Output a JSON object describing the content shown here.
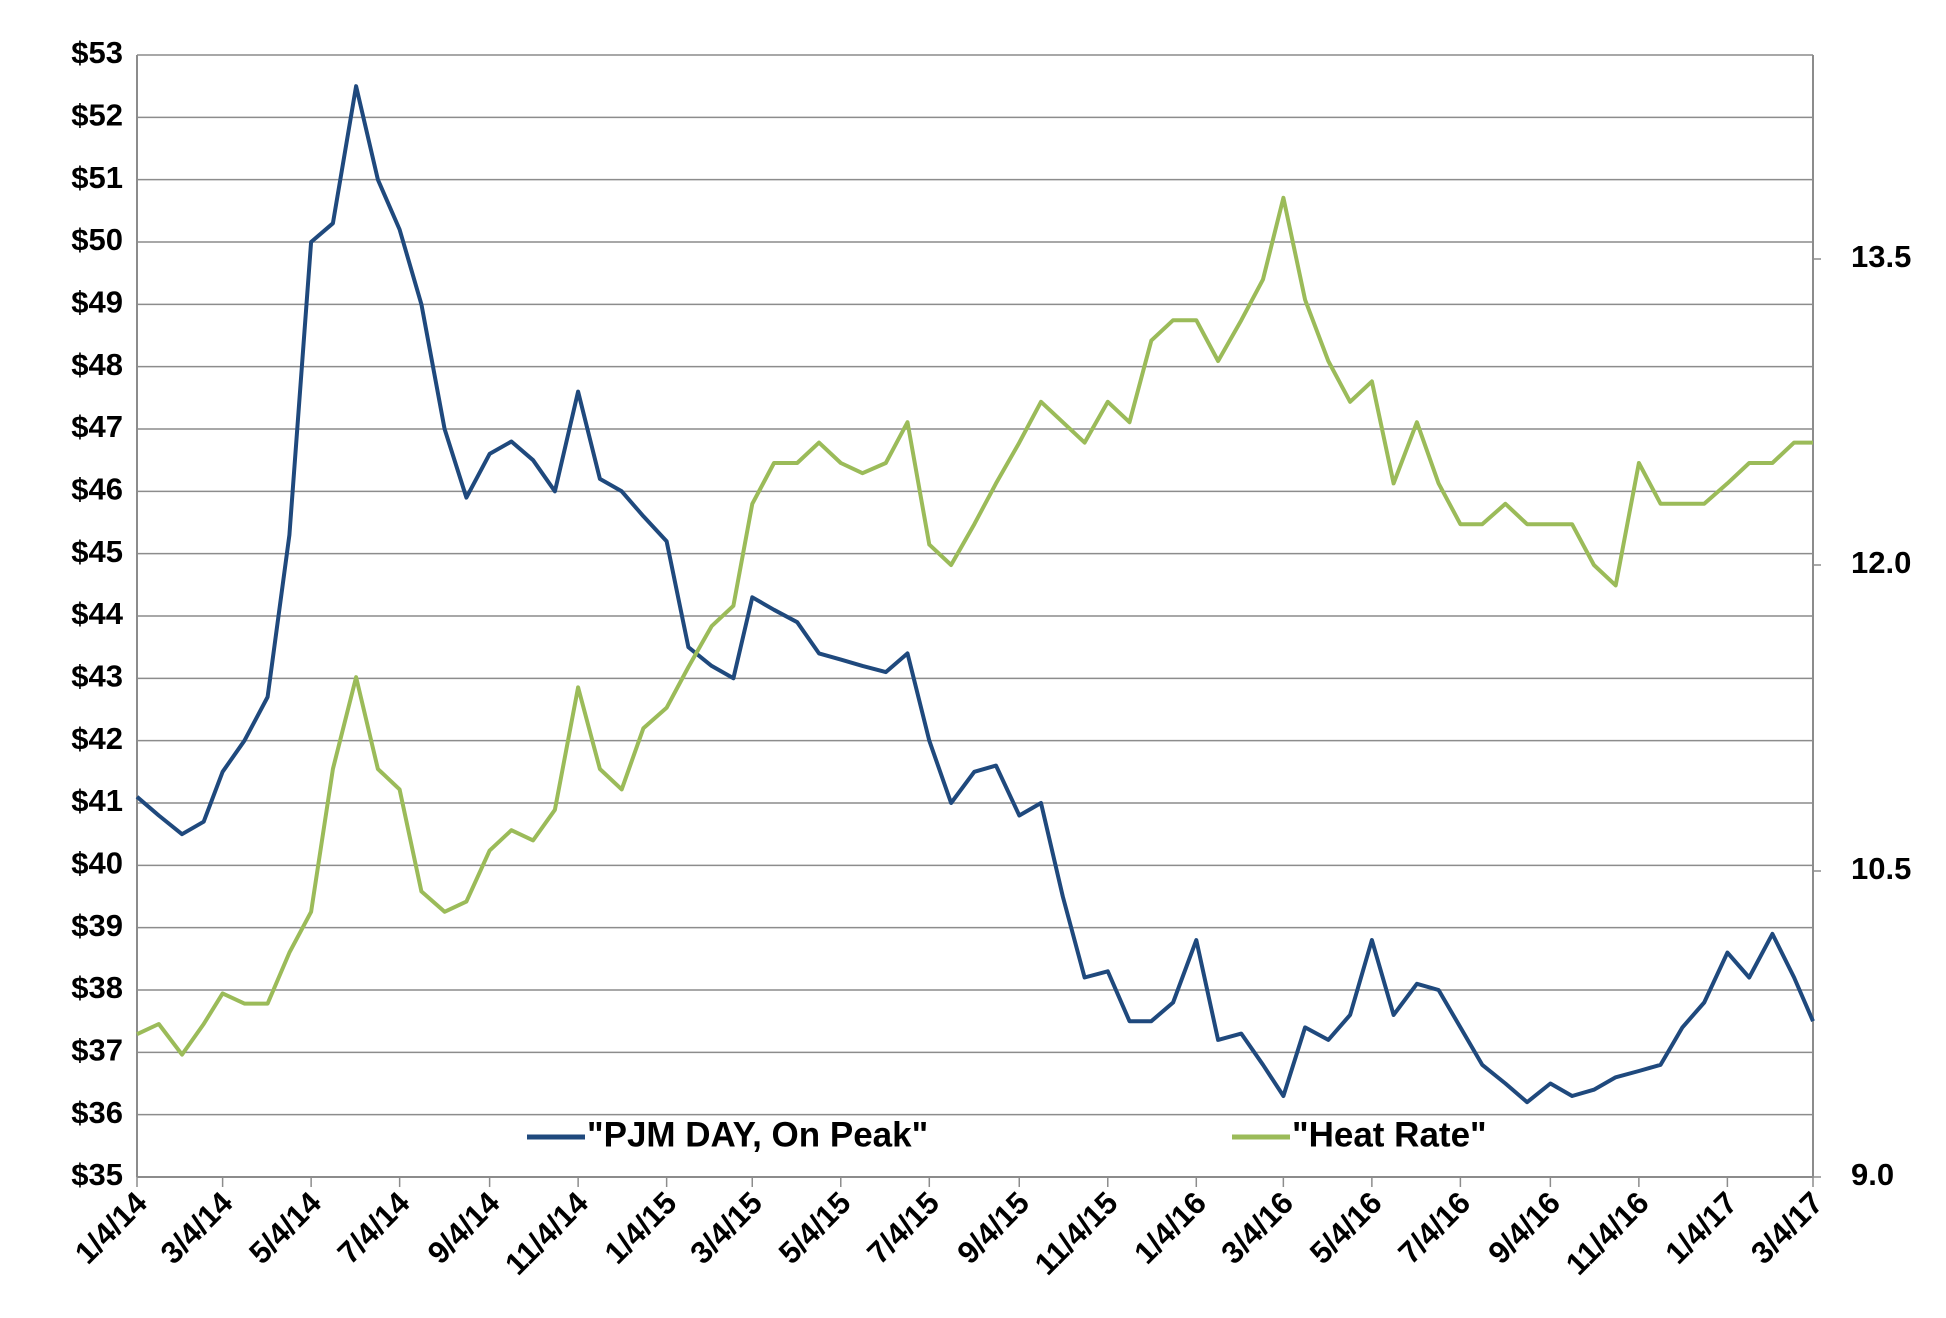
{
  "chart_data": {
    "type": "line",
    "x": [
      "1/4/14",
      "1/19/14",
      "2/4/14",
      "2/19/14",
      "3/4/14",
      "3/19/14",
      "4/4/14",
      "4/19/14",
      "5/4/14",
      "5/19/14",
      "6/4/14",
      "6/19/14",
      "7/4/14",
      "7/19/14",
      "8/4/14",
      "8/19/14",
      "9/4/14",
      "9/19/14",
      "10/4/14",
      "10/19/14",
      "11/4/14",
      "11/19/14",
      "12/4/14",
      "12/19/14",
      "1/4/15",
      "1/19/15",
      "2/4/15",
      "2/19/15",
      "3/4/15",
      "3/19/15",
      "4/4/15",
      "4/19/15",
      "5/4/15",
      "5/19/15",
      "6/4/15",
      "6/19/15",
      "7/4/15",
      "7/19/15",
      "8/4/15",
      "8/19/15",
      "9/4/15",
      "9/19/15",
      "10/4/15",
      "10/19/15",
      "11/4/15",
      "11/19/15",
      "12/4/15",
      "12/19/15",
      "1/4/16",
      "1/19/16",
      "2/4/16",
      "2/19/16",
      "3/4/16",
      "3/19/16",
      "4/4/16",
      "4/19/16",
      "5/4/16",
      "5/19/16",
      "6/4/16",
      "6/19/16",
      "7/4/16",
      "7/19/16",
      "8/4/16",
      "8/19/16",
      "9/4/16",
      "9/19/16",
      "10/4/16",
      "10/19/16",
      "11/4/16",
      "11/19/16",
      "12/4/16",
      "12/19/16",
      "1/4/17",
      "1/19/17",
      "2/4/17",
      "2/19/17",
      "3/4/17"
    ],
    "series": [
      {
        "name": "\"PJM DAY, On Peak\"",
        "color": "#1f497d",
        "values": [
          41.1,
          40.8,
          40.5,
          40.7,
          41.5,
          42.0,
          42.7,
          45.3,
          50.0,
          50.3,
          52.5,
          51.0,
          50.2,
          49.0,
          47.0,
          45.9,
          46.6,
          46.8,
          46.5,
          46.0,
          47.6,
          46.2,
          46.0,
          45.6,
          45.2,
          43.5,
          43.2,
          43.0,
          44.3,
          44.1,
          43.9,
          43.4,
          43.3,
          43.2,
          43.1,
          43.4,
          42.0,
          41.0,
          41.5,
          41.6,
          40.8,
          41.0,
          39.5,
          38.2,
          38.3,
          37.5,
          37.5,
          37.8,
          38.8,
          37.2,
          37.3,
          36.8,
          36.3,
          37.4,
          37.2,
          37.6,
          38.8,
          37.6,
          38.1,
          38.0,
          37.4,
          36.8,
          36.5,
          36.2,
          36.5,
          36.3,
          36.4,
          36.6,
          36.7,
          36.8,
          37.4,
          37.8,
          38.6,
          38.2,
          38.9,
          38.2,
          37.5
        ]
      },
      {
        "name": "\"Heat Rate\"",
        "color": "#9bbb59",
        "axis": "y2",
        "values": [
          9.7,
          9.75,
          9.6,
          9.75,
          9.9,
          9.85,
          9.85,
          10.1,
          10.3,
          11.0,
          11.45,
          11.0,
          10.9,
          10.4,
          10.3,
          10.35,
          10.6,
          10.7,
          10.65,
          10.8,
          11.4,
          11.0,
          10.9,
          11.2,
          11.3,
          11.5,
          11.7,
          11.8,
          12.3,
          12.5,
          12.5,
          12.6,
          12.5,
          12.45,
          12.5,
          12.7,
          12.1,
          12.0,
          12.2,
          12.4,
          12.6,
          12.8,
          12.7,
          12.6,
          12.8,
          12.7,
          13.1,
          13.2,
          13.2,
          13.0,
          13.2,
          13.4,
          13.8,
          13.3,
          13.0,
          12.8,
          12.9,
          12.4,
          12.7,
          12.4,
          12.2,
          12.2,
          12.3,
          12.2,
          12.2,
          12.2,
          12.0,
          11.9,
          12.5,
          12.3,
          12.3,
          12.3,
          12.4,
          12.5,
          12.5,
          12.6,
          12.6
        ]
      }
    ],
    "xlim": [
      "1/4/14",
      "3/4/17"
    ],
    "xticks": [
      "1/4/14",
      "3/4/14",
      "5/4/14",
      "7/4/14",
      "9/4/14",
      "11/4/14",
      "1/4/15",
      "3/4/15",
      "5/4/15",
      "7/4/15",
      "9/4/15",
      "11/4/15",
      "1/4/16",
      "3/4/16",
      "5/4/16",
      "7/4/16",
      "9/4/16",
      "11/4/16",
      "1/4/17",
      "3/4/17"
    ],
    "ylim": [
      35,
      53
    ],
    "yticks": [
      {
        "value": 35,
        "label": "$35"
      },
      {
        "value": 36,
        "label": "$36"
      },
      {
        "value": 37,
        "label": "$37"
      },
      {
        "value": 38,
        "label": "$38"
      },
      {
        "value": 39,
        "label": "$39"
      },
      {
        "value": 40,
        "label": "$40"
      },
      {
        "value": 41,
        "label": "$41"
      },
      {
        "value": 42,
        "label": "$42"
      },
      {
        "value": 43,
        "label": "$43"
      },
      {
        "value": 44,
        "label": "$44"
      },
      {
        "value": 45,
        "label": "$45"
      },
      {
        "value": 46,
        "label": "$46"
      },
      {
        "value": 47,
        "label": "$47"
      },
      {
        "value": 48,
        "label": "$48"
      },
      {
        "value": 49,
        "label": "$49"
      },
      {
        "value": 50,
        "label": "$50"
      },
      {
        "value": 51,
        "label": "$51"
      },
      {
        "value": 52,
        "label": "$52"
      },
      {
        "value": 53,
        "label": "$53"
      }
    ],
    "y2lim": [
      9,
      14.5
    ],
    "y2ticks": [
      {
        "value": 9,
        "label": "9.0"
      },
      10.5,
      {
        "value": 12,
        "label": "12.0"
      },
      13.5
    ],
    "grid": true
  }
}
